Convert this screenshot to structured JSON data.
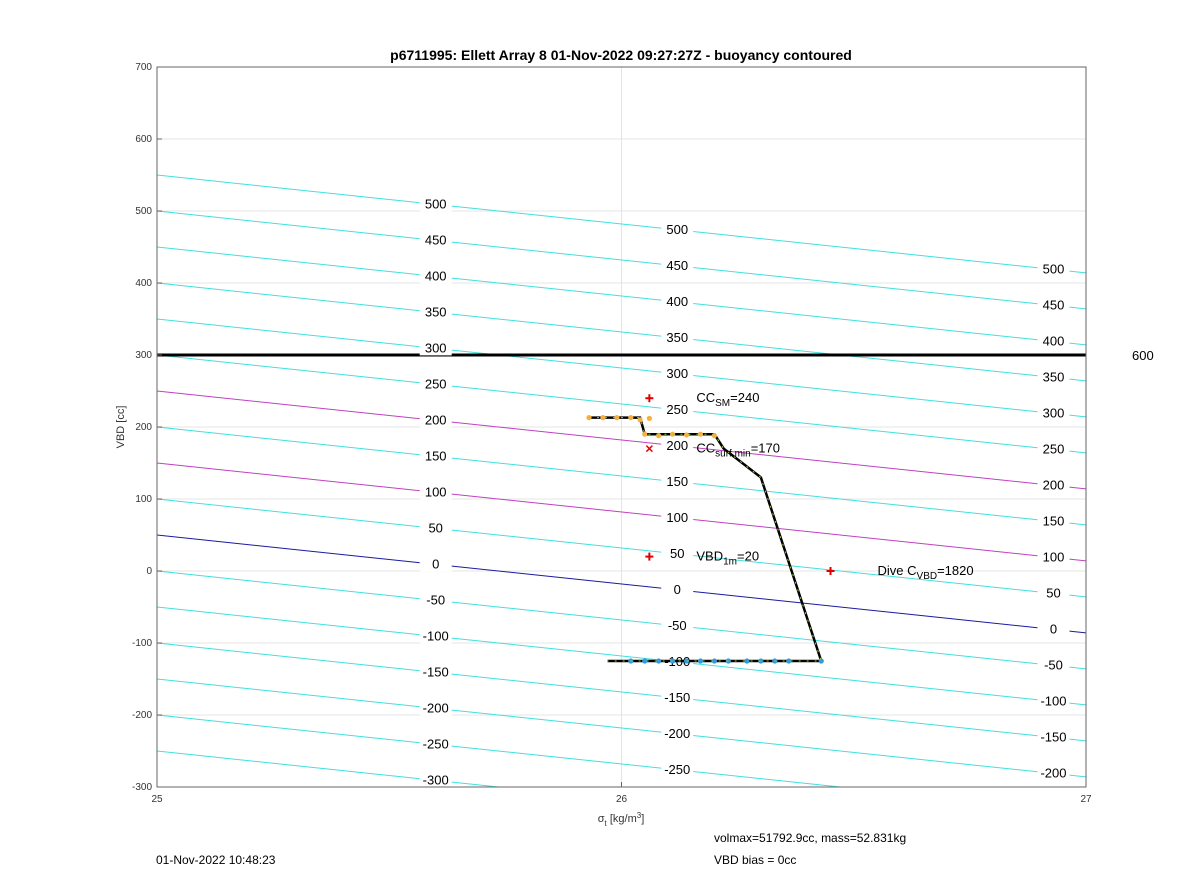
{
  "chart_data": {
    "type": "line",
    "title": "p6711995: Ellett Array 8 01-Nov-2022 09:27:27Z - buoyancy contoured",
    "xlabel": "σt [kg/m3]",
    "ylabel": "VBD [cc]",
    "xlim": [
      25,
      27
    ],
    "ylim": [
      -300,
      700
    ],
    "xticks": [
      "25",
      "26",
      "27"
    ],
    "yticks": [
      "-300",
      "-200",
      "-100",
      "0",
      "100",
      "200",
      "300",
      "400",
      "500",
      "600",
      "700"
    ],
    "grid": true,
    "contours": {
      "levels": [
        -300,
        -250,
        -200,
        -150,
        -100,
        -50,
        0,
        50,
        100,
        150,
        200,
        250,
        300,
        350,
        400,
        450,
        500
      ],
      "vbd_at_x25": [
        -250,
        -200,
        -150,
        -100,
        -50,
        0,
        50,
        100,
        150,
        200,
        250,
        300,
        350,
        400,
        450,
        500,
        550
      ],
      "slope_cc_per_unit": -68,
      "color": "#40e0e0",
      "highlight_colors": {
        "0": "#1a1aa0",
        "100": "#c040c0",
        "200": "#c040c0"
      },
      "label_positions_x": [
        25.6,
        26.12,
        26.93
      ]
    },
    "reference_line": {
      "vbd": 300,
      "label": "600",
      "color": "#000000"
    },
    "profile": {
      "x": [
        25.93,
        26.04,
        26.05,
        26.2,
        26.22,
        26.3,
        26.43,
        25.97
      ],
      "y": [
        213,
        213,
        190,
        190,
        170,
        130,
        -125,
        -125
      ],
      "color": "#000000"
    },
    "samples": [
      {
        "name": "upper",
        "color": "#f5b041",
        "x": [
          25.93,
          25.96,
          25.99,
          26.02,
          26.04,
          26.06,
          26.05,
          26.08,
          26.11,
          26.14,
          26.17,
          26.2
        ],
        "y": [
          213,
          213,
          213,
          213,
          210,
          212,
          190,
          188,
          190,
          189,
          190,
          188
        ]
      },
      {
        "name": "lower",
        "color": "#3399dd",
        "x": [
          26.02,
          26.05,
          26.08,
          26.11,
          26.14,
          26.17,
          26.2,
          26.23,
          26.27,
          26.3,
          26.33,
          26.36,
          26.43
        ],
        "y": [
          -125,
          -125,
          -125,
          -125,
          -125,
          -125,
          -125,
          -125,
          -125,
          -125,
          -125,
          -125,
          -125
        ]
      }
    ],
    "markers": [
      {
        "x": 26.06,
        "y": 240,
        "symbol": "+",
        "label": "CC",
        "sub": "SM",
        "suffix": "=240"
      },
      {
        "x": 26.06,
        "y": 170,
        "symbol": "x",
        "label": "CC",
        "sub": "surf,min",
        "suffix": "=170"
      },
      {
        "x": 26.06,
        "y": 20,
        "symbol": "+",
        "label": "VBD",
        "sub": "1m",
        "suffix": "=20"
      },
      {
        "x": 26.45,
        "y": 0,
        "symbol": "+",
        "label": "Dive C",
        "sub": "VBD",
        "suffix": "=1820"
      }
    ]
  },
  "footer": {
    "timestamp": "01-Nov-2022 10:48:23",
    "volmax_mass": "volmax=51792.9cc, mass=52.831kg",
    "vbd_bias": "VBD bias = 0cc"
  }
}
